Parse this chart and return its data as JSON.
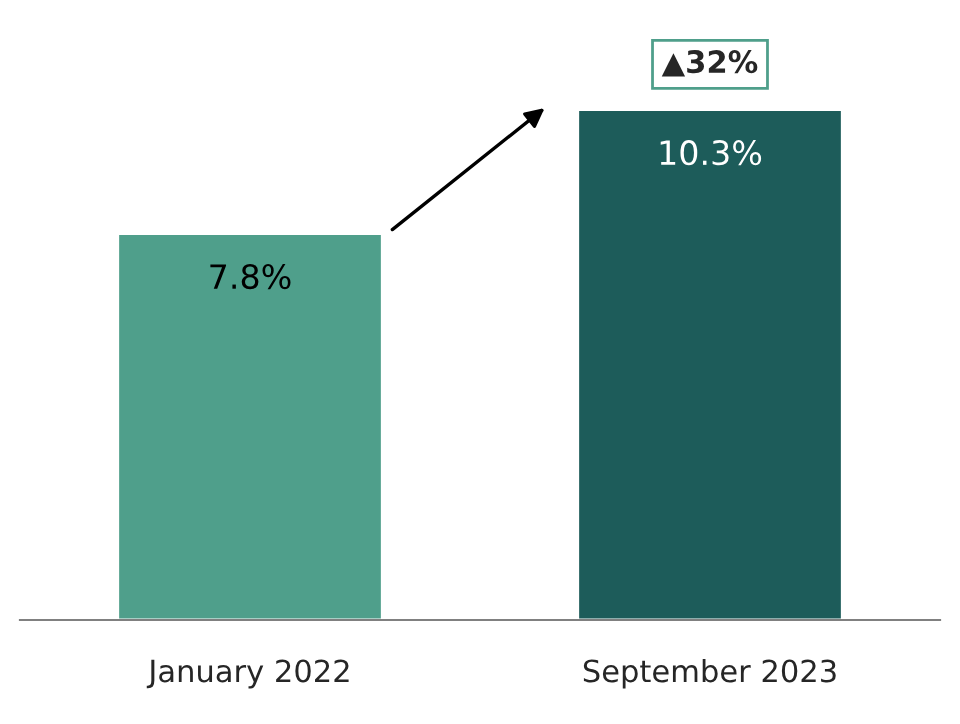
{
  "chart_data": {
    "type": "bar",
    "categories": [
      "January 2022",
      "September 2023"
    ],
    "values": [
      7.8,
      10.3
    ],
    "colors": [
      "#4f9f8b",
      "#1d5c5a"
    ],
    "value_labels": [
      "7.8%",
      "10.3%"
    ],
    "annotations": [
      {
        "text": "▲32%",
        "x": "September 2023",
        "y": 10.3
      }
    ],
    "grid": false,
    "legend": false
  }
}
